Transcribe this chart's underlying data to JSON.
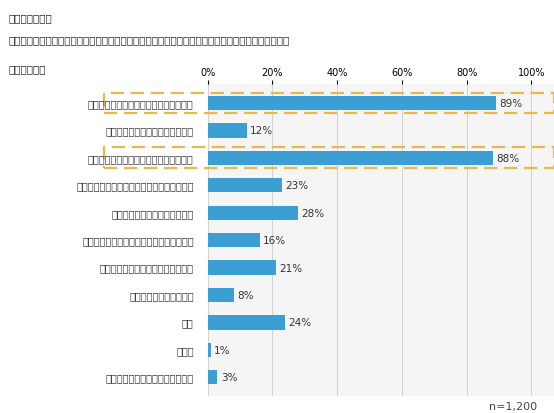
{
  "title_lines": [
    "（対象：全員）",
    "あなたご自身の実感として、１年前と比べて、価格が上昇した物・サービスを全てお選びください。",
    "（複数回答）"
  ],
  "categories": [
    "食料（食材・酒類購入費、外食費など）",
    "住居（家賃、リフォーム代など）",
    "光熱・水道（電気・ガス・水道代など）",
    "家具・家事用品（家具・家電の購入費など）",
    "被服および履物（洋服代など）",
    "保健医療（医療費、医薬品の購入費など）",
    "交通・通信（交通費、通信費など）",
    "教育教養（授業料など）",
    "娯楽",
    "その他",
    "値上がりした物・サービスはない"
  ],
  "values": [
    89,
    12,
    88,
    23,
    28,
    16,
    21,
    8,
    24,
    1,
    3
  ],
  "highlighted": [
    0,
    2
  ],
  "bar_color": "#3b9fd4",
  "highlight_box_color": "#e8b84b",
  "background_color": "#ffffff",
  "header_bg_color": "#e0e0e0",
  "n_label": "n=1,200",
  "title_fontsize": 7.5,
  "value_fontsize": 7.5,
  "category_fontsize": 7.0,
  "tick_fontsize": 7.0
}
